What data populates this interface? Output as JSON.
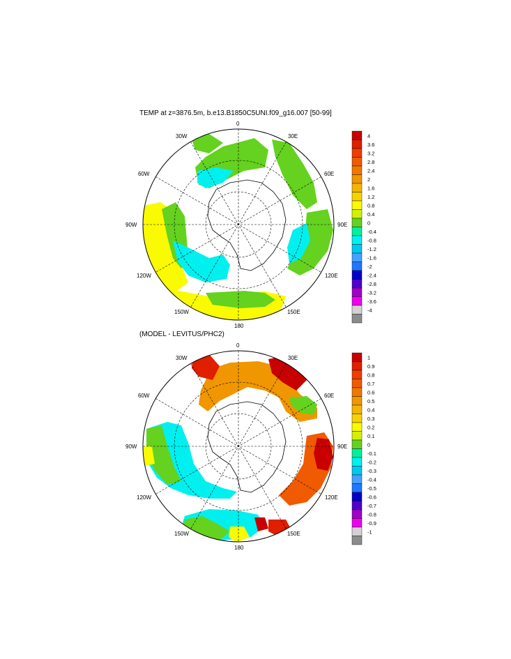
{
  "page": {
    "top_title": "TEMP at z=3876.5m, b.e13.B1850C5UNI.f09_g16.007 [50-99]",
    "bottom_title": "(MODEL - LEVITUS/PHC2)"
  },
  "map_labels": {
    "n0": "0",
    "n30e": "30E",
    "n60e": "60E",
    "n90e": "90E",
    "n120e": "120E",
    "n150e": "150E",
    "n180": "180",
    "n150w": "150W",
    "n120w": "120W",
    "n90w": "90W",
    "n60w": "60W",
    "n30w": "30W"
  },
  "colorbar_top": {
    "labels": [
      "4",
      "3.6",
      "3.2",
      "2.8",
      "2.4",
      "2",
      "1.6",
      "1.2",
      "0.8",
      "0.4",
      "0",
      "-0.4",
      "-0.8",
      "-1.2",
      "-1.6",
      "-2",
      "-2.4",
      "-2.8",
      "-3.2",
      "-3.6",
      "-4"
    ],
    "colors": [
      "#c80000",
      "#e01e00",
      "#f03c00",
      "#f05a00",
      "#f07800",
      "#f09600",
      "#f4b400",
      "#f8d200",
      "#fafa00",
      "#d2f000",
      "#64d21e",
      "#00f0a0",
      "#00f0f0",
      "#00c8f0",
      "#46a0ff",
      "#1e78ff",
      "#0000c8",
      "#5000c8",
      "#a000c8",
      "#f000f0",
      "#d2d2d2",
      "#8c8c8c"
    ]
  },
  "colorbar_bottom": {
    "labels": [
      "1",
      "0.9",
      "0.8",
      "0.7",
      "0.6",
      "0.5",
      "0.4",
      "0.3",
      "0.2",
      "0.1",
      "0",
      "-0.1",
      "-0.2",
      "-0.3",
      "-0.4",
      "-0.5",
      "-0.6",
      "-0.7",
      "-0.8",
      "-0.9",
      "-1"
    ],
    "colors": [
      "#c80000",
      "#e01e00",
      "#f03c00",
      "#f05a00",
      "#f07800",
      "#f09600",
      "#f4b400",
      "#f8d200",
      "#fafa00",
      "#d2f000",
      "#64d21e",
      "#00f0a0",
      "#00f0f0",
      "#00c8f0",
      "#46a0ff",
      "#1e78ff",
      "#0000c8",
      "#5000c8",
      "#a000c8",
      "#f000f0",
      "#d2d2d2",
      "#8c8c8c"
    ]
  }
}
